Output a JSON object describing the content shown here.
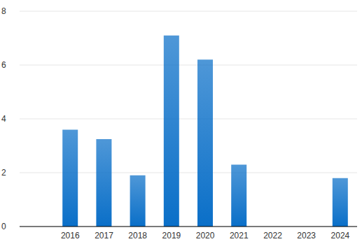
{
  "chart_data": {
    "type": "bar",
    "categories": [
      null,
      "2016",
      "2017",
      "2018",
      "2019",
      "2020",
      "2021",
      "2022",
      "2023",
      "2024"
    ],
    "values": [
      null,
      3.6,
      3.25,
      1.9,
      7.1,
      6.2,
      2.3,
      null,
      null,
      1.8
    ],
    "color": "#0a6fc8",
    "ylim": [
      0,
      8
    ],
    "yticks": [
      0,
      2,
      4,
      6,
      8
    ],
    "grid": true
  }
}
